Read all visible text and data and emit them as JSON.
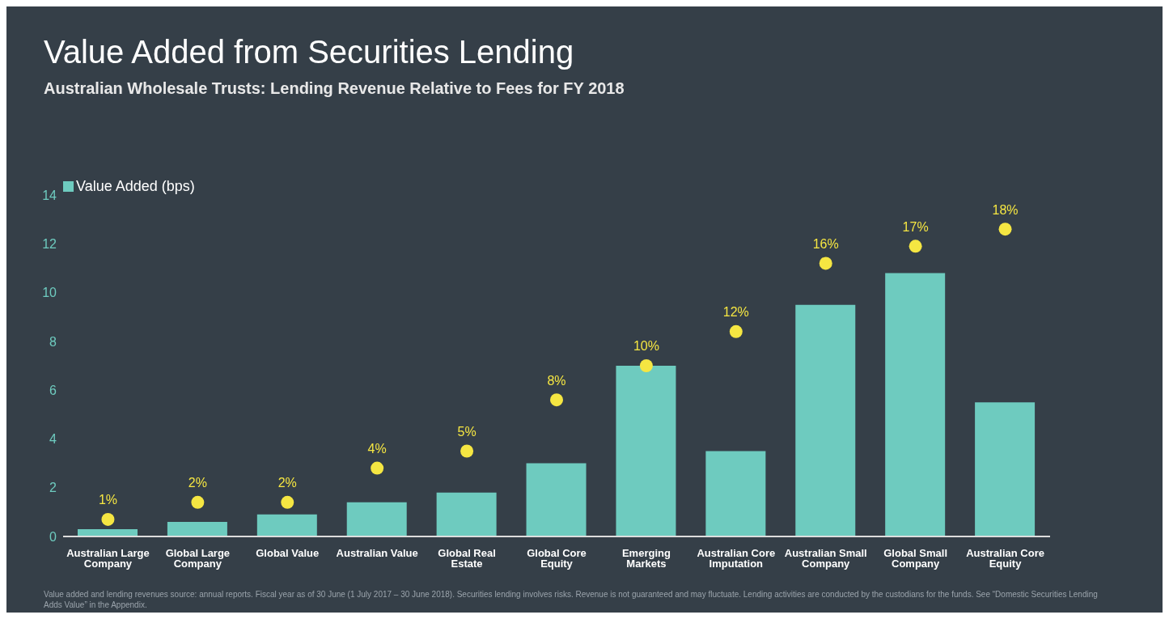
{
  "chart_data": {
    "type": "bar",
    "title": "Value Added from Securities Lending",
    "subtitle": "Australian Wholesale Trusts: Lending Revenue Relative to Fees for FY 2018",
    "categories": [
      "Australian Large Company",
      "Global Large Company",
      "Global Value",
      "Australian Value",
      "Global Real Estate",
      "Global Core Equity",
      "Emerging Markets",
      "Australian Core Imputation",
      "Australian Small Company",
      "Global Small Company",
      "Australian Core Equity"
    ],
    "series": [
      {
        "name": "Value Added (bps)",
        "type": "bar",
        "color": "#6ecbbf",
        "values": [
          0.3,
          0.6,
          0.9,
          1.4,
          1.8,
          3.0,
          7.0,
          3.5,
          9.5,
          10.8,
          5.5
        ]
      },
      {
        "type": "scatter",
        "axis": "y2",
        "color": "#f5e642",
        "values": [
          1,
          2,
          2,
          4,
          5,
          8,
          10,
          12,
          16,
          17,
          18
        ],
        "value_labels": [
          "1%",
          "2%",
          "2%",
          "4%",
          "5%",
          "8%",
          "10%",
          "12%",
          "16%",
          "17%",
          "18%"
        ]
      }
    ],
    "ylim": [
      0,
      14
    ],
    "yticks": [
      0,
      2,
      4,
      6,
      8,
      10,
      12,
      14
    ],
    "legend": "top left",
    "marker": "circle",
    "annotations": [
      "Value added and lending revenues source: annual reports. Fiscal year as of 30 June (1 July 2017 – 30 June 2018). Securities lending involves risks. Revenue is not guaranteed and may fluctuate. Lending activities are conducted by the custodians for the funds. See “Domestic Securities Lending Adds Value” in the Appendix."
    ]
  }
}
